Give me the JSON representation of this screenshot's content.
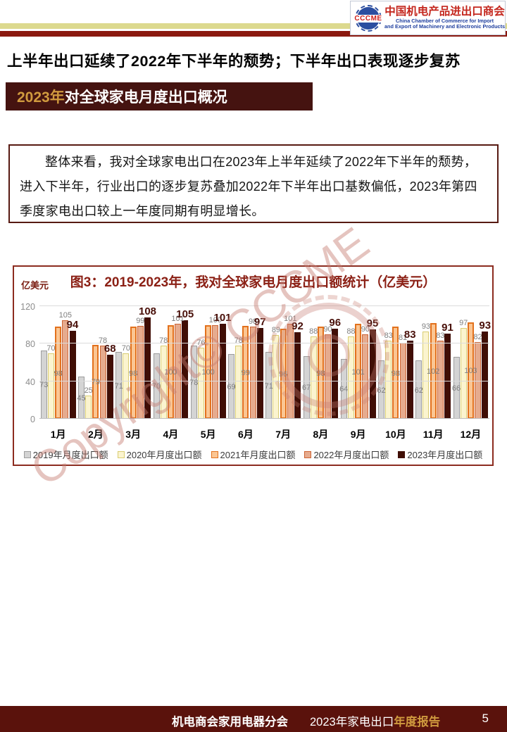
{
  "header": {
    "logo": {
      "acronym": "CCCME",
      "name_cn": "中国机电产品进出口商会",
      "name_en_line1": "China Chamber of Commerce for Import",
      "name_en_line2": "and Export of Machinery and Electronic Products"
    },
    "title": "上半年出口延续了2022年下半年的颓势；下半年出口表现逐步复苏",
    "banner": {
      "highlight": "2023年",
      "rest": "对全球家电月度出口概况"
    }
  },
  "paragraph": {
    "text": "整体来看，我对全球家电出口在2023年上半年延续了2022年下半年的颓势，进入下半年，行业出口的逐步复苏叠加2022年下半年出口基数偏低，2023年第四季度家电出口较上一年度同期有明显增长。"
  },
  "chart_data": {
    "type": "bar",
    "title": "图3：2019-2023年，我对全球家电月度出口额统计（亿美元）",
    "ylabel": "亿美元",
    "ylim": [
      0,
      120
    ],
    "yticks": [
      0,
      40,
      80,
      120
    ],
    "grid": true,
    "legend_position": "bottom",
    "categories": [
      "1月",
      "2月",
      "3月",
      "4月",
      "5月",
      "6月",
      "7月",
      "8月",
      "9月",
      "10月",
      "11月",
      "12月"
    ],
    "series": [
      {
        "name": "2019年月度出口额",
        "fill": "#d4d4d4",
        "border": "#9d9d9d",
        "border_width": 1,
        "label_placement": "inside",
        "values": [
          73,
          45,
          71,
          70,
          78,
          69,
          71,
          67,
          64,
          62,
          62,
          66
        ]
      },
      {
        "name": "2020年月度出口额",
        "fill": "#fbf4cf",
        "border": "#d9cd72",
        "border_width": 1,
        "label_placement": "outside",
        "values": [
          70,
          25,
          70,
          78,
          76,
          78,
          89,
          88,
          88,
          83,
          93,
          97
        ]
      },
      {
        "name": "2021年月度出口额",
        "fill": "#fbc693",
        "border": "#e2711d",
        "border_width": 2,
        "label_placement": "inside",
        "values": [
          98,
          79,
          98,
          100,
          100,
          99,
          96,
          98,
          101,
          98,
          102,
          103
        ]
      },
      {
        "name": "2022年月度出口额",
        "fill": "#e6ab8e",
        "border": "#cd6434",
        "border_width": 1,
        "label_placement": "outside",
        "values": [
          105,
          78,
          99,
          101,
          100,
          98,
          101,
          90,
          90,
          81,
          83,
          82
        ]
      },
      {
        "name": "2023年月度出口额",
        "fill": "#400e05",
        "border": "#400e05",
        "border_width": 1,
        "label_placement": "outside-bold",
        "values": [
          94,
          68,
          108,
          105,
          101,
          97,
          92,
          96,
          95,
          83,
          91,
          93
        ]
      }
    ]
  },
  "watermark": {
    "text": "Copyright© CCCME"
  },
  "footer": {
    "org": "机电商会家用电器分会",
    "report": "2023年家电出口",
    "report_highlight": "年度报告",
    "page": "5"
  }
}
